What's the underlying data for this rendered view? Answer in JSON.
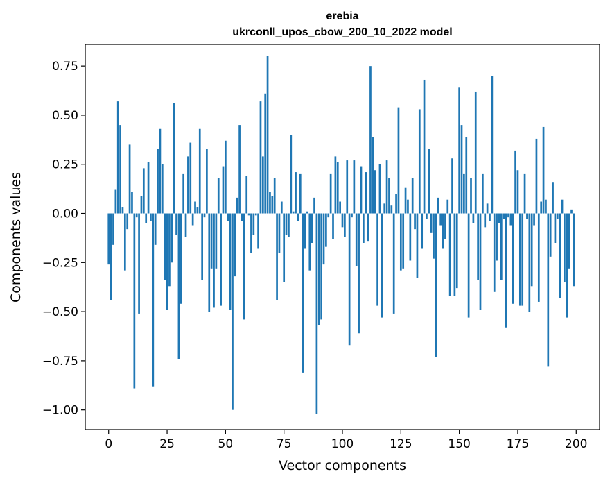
{
  "chart_data": {
    "type": "bar",
    "title_line1": "erebia",
    "title_line2": "ukrconll_upos_cbow_200_10_2022 model",
    "xlabel": "Vector components",
    "ylabel": "Components values",
    "xlim": [
      -10,
      210
    ],
    "ylim": [
      -1.1,
      0.86
    ],
    "xticks": [
      0,
      25,
      50,
      75,
      100,
      125,
      150,
      175,
      200
    ],
    "yticks": [
      0.75,
      0.5,
      0.25,
      0.0,
      -0.25,
      -0.5,
      -0.75,
      -1.0
    ],
    "xtick_labels": [
      "0",
      "25",
      "50",
      "75",
      "100",
      "125",
      "150",
      "175",
      "200"
    ],
    "ytick_labels": [
      "0.75",
      "0.50",
      "0.25",
      "0.00",
      "−0.25",
      "−0.50",
      "−0.75",
      "−1.00"
    ],
    "bar_color": "#1f77b4",
    "grid": false,
    "values": [
      -0.26,
      -0.44,
      -0.16,
      0.12,
      0.57,
      0.45,
      0.03,
      -0.29,
      -0.08,
      0.35,
      0.11,
      -0.89,
      -0.02,
      -0.51,
      0.09,
      0.23,
      -0.05,
      0.26,
      -0.04,
      -0.88,
      -0.16,
      0.33,
      0.43,
      0.25,
      -0.34,
      -0.49,
      -0.37,
      -0.25,
      0.56,
      -0.11,
      -0.74,
      -0.46,
      0.2,
      -0.12,
      0.29,
      0.36,
      -0.06,
      0.06,
      0.03,
      0.43,
      -0.34,
      -0.02,
      0.33,
      -0.5,
      -0.28,
      -0.48,
      -0.28,
      0.18,
      -0.47,
      0.24,
      0.37,
      -0.04,
      -0.49,
      -1.0,
      -0.32,
      0.08,
      0.45,
      -0.04,
      -0.54,
      0.19,
      -0.01,
      -0.2,
      -0.11,
      -0.01,
      -0.18,
      0.57,
      0.29,
      0.61,
      0.8,
      0.11,
      0.09,
      0.18,
      -0.44,
      -0.2,
      0.06,
      -0.35,
      -0.11,
      -0.12,
      0.4,
      0.01,
      0.21,
      -0.04,
      0.2,
      -0.81,
      -0.18,
      0.01,
      -0.29,
      -0.15,
      0.08,
      -1.02,
      -0.57,
      -0.54,
      -0.26,
      -0.17,
      -0.02,
      0.2,
      -0.13,
      0.29,
      0.26,
      0.06,
      -0.07,
      -0.12,
      0.27,
      -0.67,
      -0.02,
      0.27,
      -0.27,
      -0.61,
      0.24,
      -0.15,
      0.21,
      -0.14,
      0.75,
      0.39,
      0.22,
      -0.47,
      0.25,
      -0.53,
      0.05,
      0.27,
      0.18,
      0.04,
      -0.51,
      0.1,
      0.54,
      -0.29,
      -0.28,
      0.13,
      0.07,
      -0.24,
      0.18,
      -0.08,
      -0.33,
      0.53,
      -0.18,
      0.68,
      -0.03,
      0.33,
      -0.1,
      -0.23,
      -0.73,
      0.08,
      -0.06,
      -0.18,
      -0.13,
      0.07,
      -0.42,
      0.28,
      -0.42,
      -0.38,
      0.64,
      0.45,
      0.2,
      0.39,
      -0.53,
      0.18,
      -0.05,
      0.62,
      -0.34,
      -0.49,
      0.2,
      -0.07,
      0.05,
      -0.04,
      0.7,
      -0.4,
      -0.24,
      -0.05,
      -0.34,
      -0.03,
      -0.58,
      -0.02,
      -0.06,
      -0.46,
      0.32,
      0.22,
      -0.47,
      -0.47,
      0.2,
      -0.03,
      -0.5,
      -0.37,
      -0.06,
      0.38,
      -0.45,
      0.06,
      0.44,
      0.07,
      -0.78,
      -0.22,
      0.16,
      -0.15,
      -0.03,
      -0.43,
      0.07,
      -0.35,
      -0.53,
      -0.28,
      0.02,
      -0.37
    ]
  }
}
